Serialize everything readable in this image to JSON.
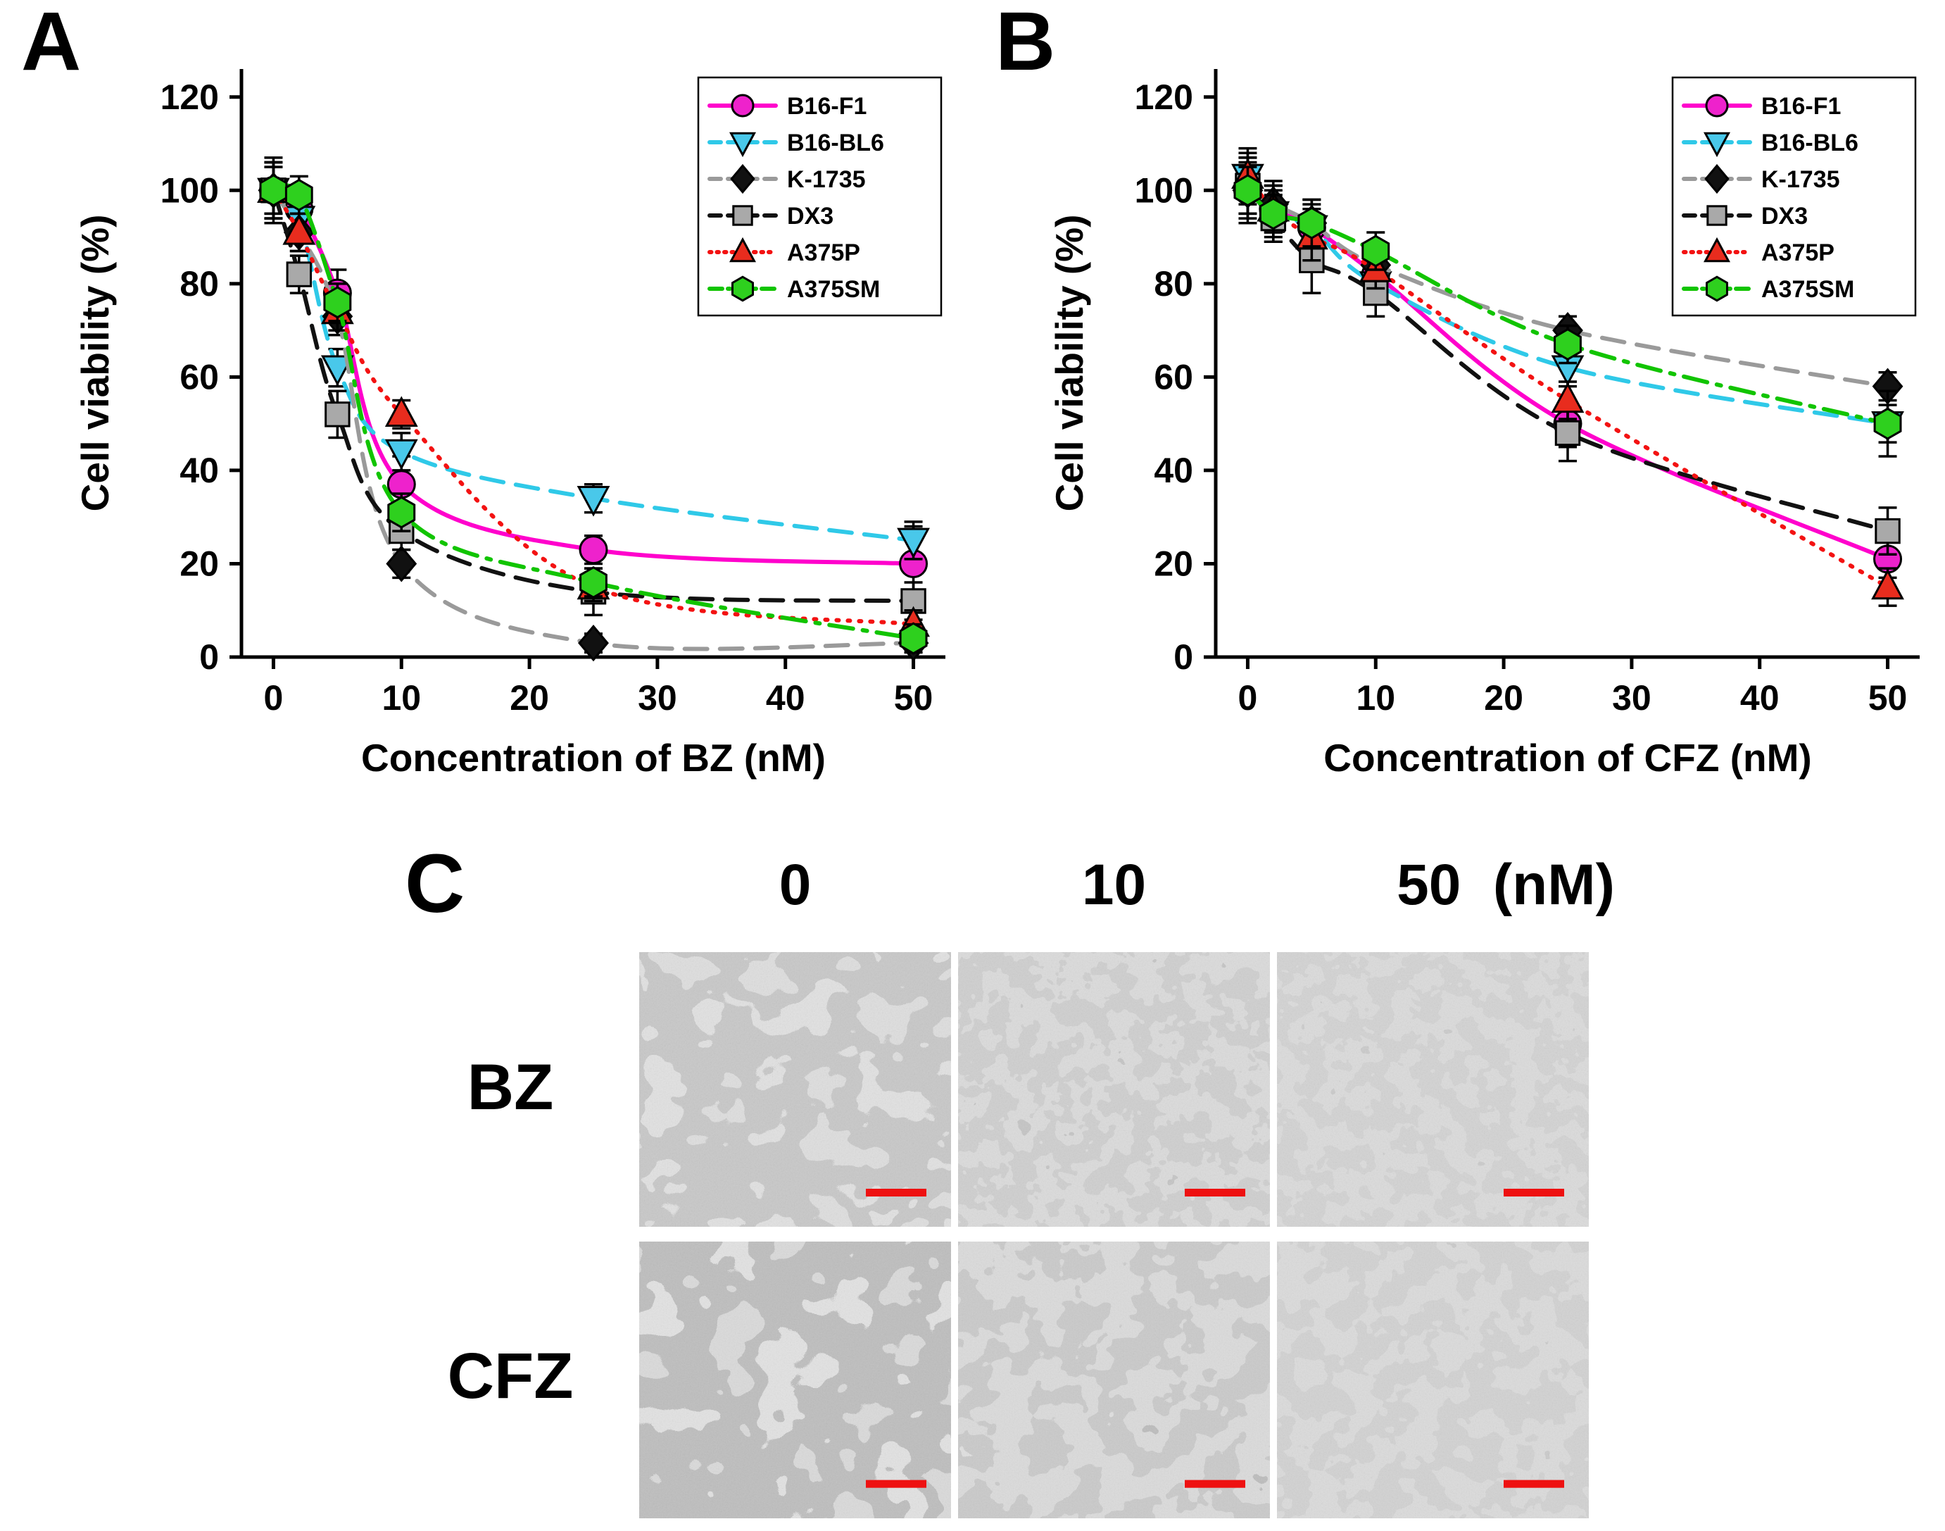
{
  "figure": {
    "background": "#ffffff",
    "panel_a_letter": "A",
    "panel_b_letter": "B",
    "panel_c_letter": "C"
  },
  "panel_c": {
    "column_labels": [
      "0",
      "10",
      "50  (nM)"
    ],
    "row_labels": [
      "BZ",
      "CFZ"
    ],
    "scale_bar_color": "#ee1111"
  },
  "chart_data": [
    {
      "id": "chart-bz",
      "type": "line",
      "title": "",
      "xlabel": "Concentration of BZ (nM)",
      "ylabel": "Cell viability (%)",
      "xlim": [
        -2.5,
        52.5
      ],
      "ylim": [
        0,
        126
      ],
      "xticks": [
        0,
        10,
        20,
        30,
        40,
        50
      ],
      "yticks": [
        0,
        20,
        40,
        60,
        80,
        100,
        120
      ],
      "grid": false,
      "legend_position": "top-right",
      "x": [
        0,
        2,
        5,
        10,
        25,
        50
      ],
      "series": [
        {
          "name": "B16-F1",
          "color": "#ff00cc",
          "marker": "circle",
          "marker_fill": "#ee22cc",
          "line_style": "solid",
          "values": [
            100,
            96,
            78,
            37,
            23,
            20
          ],
          "errors": [
            7,
            4,
            5,
            6,
            3,
            8
          ]
        },
        {
          "name": "B16-BL6",
          "color": "#2fc9e8",
          "marker": "triangle-down",
          "marker_fill": "#49c8ea",
          "line_style": "dashed",
          "values": [
            100,
            94,
            62,
            44,
            34,
            25
          ],
          "errors": [
            6,
            4,
            4,
            4,
            3,
            4
          ]
        },
        {
          "name": "K-1735",
          "color": "#9a9a9a",
          "marker": "diamond",
          "marker_fill": "#111111",
          "line_style": "dashed",
          "values": [
            100,
            91,
            73,
            20,
            3,
            3
          ],
          "errors": [
            6,
            4,
            4,
            3,
            2,
            2
          ]
        },
        {
          "name": "DX3",
          "color": "#111111",
          "marker": "square",
          "marker_fill": "#a9a9a9",
          "line_style": "dashed",
          "values": [
            100,
            82,
            52,
            27,
            14,
            12
          ],
          "errors": [
            6,
            4,
            5,
            4,
            5,
            4
          ]
        },
        {
          "name": "A375P",
          "color": "#f31212",
          "marker": "triangle-up",
          "marker_fill": "#e82c1e",
          "line_style": "dotted",
          "values": [
            100,
            91,
            74,
            52,
            15,
            7
          ],
          "errors": [
            5,
            4,
            4,
            3,
            3,
            3
          ]
        },
        {
          "name": "A375SM",
          "color": "#11c400",
          "marker": "hexagon",
          "marker_fill": "#2ed01e",
          "line_style": "dashdot",
          "values": [
            100,
            99,
            76,
            31,
            16,
            4
          ],
          "errors": [
            5,
            4,
            4,
            4,
            3,
            3
          ]
        }
      ]
    },
    {
      "id": "chart-cfz",
      "type": "line",
      "title": "",
      "xlabel": "Concentration of CFZ (nM)",
      "ylabel": "Cell viability (%)",
      "xlim": [
        -2.5,
        52.5
      ],
      "ylim": [
        0,
        126
      ],
      "xticks": [
        0,
        10,
        20,
        30,
        40,
        50
      ],
      "yticks": [
        0,
        20,
        40,
        60,
        80,
        100,
        120
      ],
      "grid": false,
      "legend_position": "top-right",
      "x": [
        0,
        2,
        5,
        10,
        25,
        50
      ],
      "series": [
        {
          "name": "B16-F1",
          "color": "#ff00cc",
          "marker": "circle",
          "marker_fill": "#ee22cc",
          "line_style": "solid",
          "values": [
            100,
            96,
            92,
            82,
            50,
            21
          ],
          "errors": [
            6,
            5,
            4,
            4,
            5,
            4
          ]
        },
        {
          "name": "B16-BL6",
          "color": "#2fc9e8",
          "marker": "triangle-down",
          "marker_fill": "#49c8ea",
          "line_style": "dashed",
          "values": [
            103,
            95,
            92,
            80,
            62,
            50
          ],
          "errors": [
            5,
            6,
            5,
            4,
            4,
            4
          ]
        },
        {
          "name": "K-1735",
          "color": "#9a9a9a",
          "marker": "diamond",
          "marker_fill": "#111111",
          "line_style": "dashed",
          "values": [
            100,
            97,
            93,
            84,
            70,
            58
          ],
          "errors": [
            7,
            5,
            5,
            4,
            3,
            3
          ]
        },
        {
          "name": "DX3",
          "color": "#111111",
          "marker": "square",
          "marker_fill": "#a9a9a9",
          "line_style": "dashed",
          "values": [
            101,
            94,
            85,
            78,
            48,
            27
          ],
          "errors": [
            6,
            5,
            7,
            5,
            6,
            5
          ]
        },
        {
          "name": "A375P",
          "color": "#f31212",
          "marker": "triangle-up",
          "marker_fill": "#e82c1e",
          "line_style": "dotted",
          "values": [
            103,
            96,
            90,
            83,
            55,
            15
          ],
          "errors": [
            6,
            5,
            5,
            4,
            4,
            4
          ]
        },
        {
          "name": "A375SM",
          "color": "#11c400",
          "marker": "hexagon",
          "marker_fill": "#2ed01e",
          "line_style": "dashdot",
          "values": [
            100,
            95,
            93,
            87,
            67,
            50
          ],
          "errors": [
            5,
            5,
            5,
            4,
            4,
            7
          ]
        }
      ]
    }
  ]
}
